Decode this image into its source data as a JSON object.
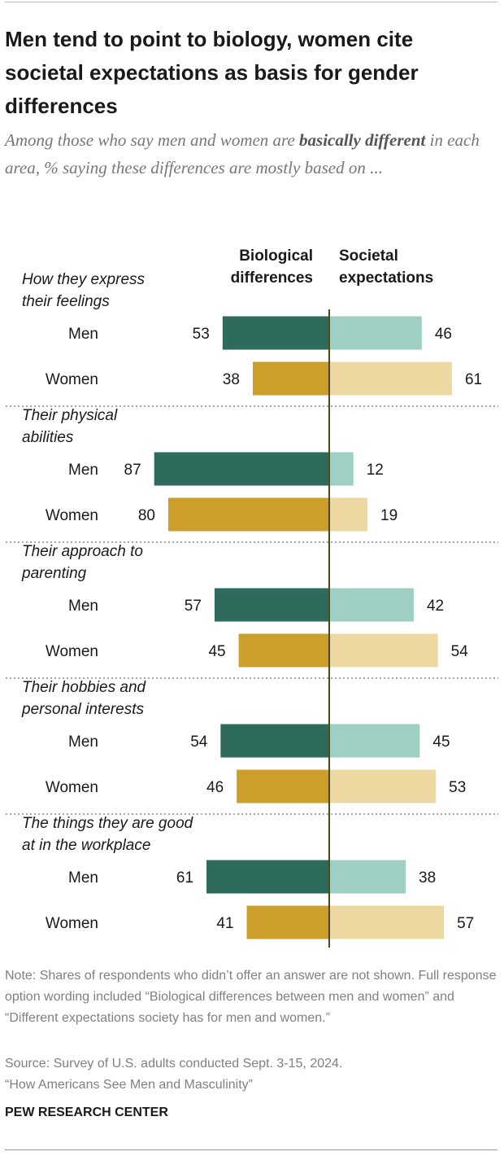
{
  "header": {
    "title": "Men tend to point to biology, women cite societal expectations as basis for gender differences",
    "subtitle_pre": "Among those who say men and women are ",
    "subtitle_bold": "basically different",
    "subtitle_post": " in each area, % saying these differences are mostly based on ..."
  },
  "chart_data": {
    "type": "bar",
    "orientation": "horizontal-diverging",
    "column_headers": [
      "Biological differences",
      "Societal expectations"
    ],
    "groups": [
      {
        "label": "How they express their feelings",
        "label_lines": [
          "How they express",
          "their feelings"
        ],
        "rows": [
          {
            "name": "Men",
            "biological": 53,
            "societal": 46
          },
          {
            "name": "Women",
            "biological": 38,
            "societal": 61
          }
        ]
      },
      {
        "label": "Their physical abilities",
        "label_lines": [
          "Their physical",
          "abilities"
        ],
        "rows": [
          {
            "name": "Men",
            "biological": 87,
            "societal": 12
          },
          {
            "name": "Women",
            "biological": 80,
            "societal": 19
          }
        ]
      },
      {
        "label": "Their approach to parenting",
        "label_lines": [
          "Their approach to",
          "parenting"
        ],
        "rows": [
          {
            "name": "Men",
            "biological": 57,
            "societal": 42
          },
          {
            "name": "Women",
            "biological": 45,
            "societal": 54
          }
        ]
      },
      {
        "label": "Their hobbies and personal interests",
        "label_lines": [
          "Their hobbies and",
          "personal interests"
        ],
        "rows": [
          {
            "name": "Men",
            "biological": 54,
            "societal": 45
          },
          {
            "name": "Women",
            "biological": 46,
            "societal": 53
          }
        ]
      },
      {
        "label": "The things they are good at in the workplace",
        "label_lines": [
          "The things they are good",
          "at in the workplace"
        ],
        "rows": [
          {
            "name": "Men",
            "biological": 61,
            "societal": 38
          },
          {
            "name": "Women",
            "biological": 41,
            "societal": 57
          }
        ]
      }
    ],
    "colors": {
      "men_biological": "#2e6b5d",
      "men_societal": "#9ecfc2",
      "women_biological": "#cc9e2c",
      "women_societal": "#ecd9a2",
      "axis": "#4a4a1e",
      "divider": "#a8a8a8"
    }
  },
  "footer": {
    "note": "Note: Shares of respondents who didn’t offer an answer are not shown. Full response option wording included “Biological differences between men and women” and “Different expectations society has for men and women.”",
    "source_line1": "Source: Survey of U.S. adults conducted Sept. 3-15, 2024.",
    "source_line2": "“How Americans See Men and Masculinity”",
    "brand": "PEW RESEARCH CENTER"
  }
}
